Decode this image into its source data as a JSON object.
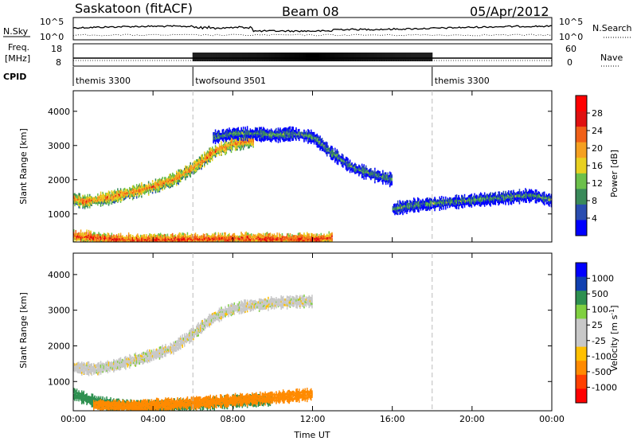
{
  "header": {
    "site": "Saskatoon (fitACF)",
    "beam": "Beam 08",
    "date": "05/Apr/2012"
  },
  "top_panels": {
    "nsky_label": "N.Sky",
    "nsky_ticks": [
      "10^5",
      "10^0"
    ],
    "nsearch_label": "N.Search",
    "nsearch_ticks": [
      "10^5",
      "10^0"
    ],
    "freq_label_line1": "Freq.",
    "freq_label_line2": "[MHz]",
    "freq_ticks": [
      "18",
      "8"
    ],
    "nave_label": "Nave",
    "nave_ticks": [
      "60",
      "0"
    ],
    "cpid_label": "CPID"
  },
  "cpid_segments": [
    {
      "name": "themis 3300",
      "start_hour": 0,
      "end_hour": 6
    },
    {
      "name": "twofsound 3501",
      "start_hour": 6,
      "end_hour": 18
    },
    {
      "name": "themis 3300",
      "start_hour": 18,
      "end_hour": 24
    }
  ],
  "colors": {
    "power_scale": [
      "#0000ff",
      "#2a4db0",
      "#3a8a5a",
      "#6cc04a",
      "#e8d020",
      "#f5a020",
      "#f06018",
      "#e01010",
      "#ff0000"
    ],
    "velocity_scale": [
      "#ff0000",
      "#ff4000",
      "#ff8a00",
      "#ffc000",
      "#c8c8c8",
      "#c8c8c8",
      "#80d040",
      "#2e9050",
      "#1040b0",
      "#0000ff"
    ]
  },
  "chart_data": [
    {
      "type": "heatmap",
      "title": "",
      "xlabel": "Time UT",
      "ylabel": "Slant Range [km]",
      "xlim": [
        0,
        24
      ],
      "ylim": [
        180,
        4600
      ],
      "xticks": [
        "00:00",
        "04:00",
        "08:00",
        "12:00",
        "16:00",
        "20:00",
        "00:00"
      ],
      "yticks": [
        1000,
        2000,
        3000,
        4000
      ],
      "colorbar": {
        "label": "Power [dB]",
        "ticks": [
          "28",
          "24",
          "20",
          "16",
          "12",
          "8",
          "4"
        ],
        "range": [
          0,
          32
        ]
      },
      "features": [
        {
          "name": "primary band",
          "x": [
            0,
            0.5,
            1,
            2,
            3,
            4,
            5,
            6,
            7,
            8,
            9
          ],
          "y": [
            1500,
            1400,
            1450,
            1550,
            1700,
            1850,
            2050,
            2400,
            2850,
            3100,
            3200
          ],
          "power": 22
        },
        {
          "name": "near-range band",
          "x": [
            0,
            1,
            2,
            4,
            6,
            8,
            10,
            12,
            13
          ],
          "y": [
            400,
            350,
            300,
            280,
            300,
            320,
            300,
            300,
            350
          ],
          "power": 26
        },
        {
          "name": "high-range band",
          "x": [
            7,
            8,
            9,
            10,
            11,
            12,
            13,
            14,
            15,
            16
          ],
          "y": [
            3300,
            3400,
            3400,
            3350,
            3400,
            3300,
            2800,
            2400,
            2200,
            2050
          ],
          "power": 10
        },
        {
          "name": "evening band",
          "x": [
            16,
            17,
            18,
            19,
            20,
            21,
            22,
            23,
            24
          ],
          "y": [
            1200,
            1300,
            1350,
            1400,
            1450,
            1500,
            1550,
            1600,
            1450
          ],
          "power": 10
        }
      ]
    },
    {
      "type": "heatmap",
      "title": "",
      "xlabel": "Time UT",
      "ylabel": "Slant Range [km]",
      "xlim": [
        0,
        24
      ],
      "ylim": [
        180,
        4600
      ],
      "xticks": [
        "00:00",
        "04:00",
        "08:00",
        "12:00",
        "16:00",
        "20:00",
        "00:00"
      ],
      "yticks": [
        1000,
        2000,
        3000,
        4000
      ],
      "colorbar": {
        "label": "Velocity [m s^-1]",
        "ticks": [
          "1000",
          "500",
          "100",
          "25",
          "-25",
          "-100",
          "-500",
          "-1000"
        ],
        "range": [
          -1200,
          1200
        ]
      },
      "features": [
        {
          "name": "ground scatter band",
          "x": [
            0,
            1,
            2,
            3,
            4,
            5,
            6,
            7,
            8,
            9,
            10,
            11,
            12
          ],
          "y": [
            1450,
            1400,
            1500,
            1650,
            1800,
            2000,
            2400,
            2850,
            3100,
            3200,
            3250,
            3300,
            3300
          ],
          "velocity": 0
        },
        {
          "name": "near-range positive",
          "x": [
            0,
            1,
            2,
            4,
            6,
            8,
            10
          ],
          "y": [
            700,
            500,
            400,
            350,
            400,
            500,
            550
          ],
          "velocity": 120
        },
        {
          "name": "near-range negative",
          "x": [
            1,
            2,
            3,
            10,
            11,
            12
          ],
          "y": [
            400,
            380,
            350,
            600,
            650,
            700
          ],
          "velocity": -150
        }
      ]
    }
  ]
}
